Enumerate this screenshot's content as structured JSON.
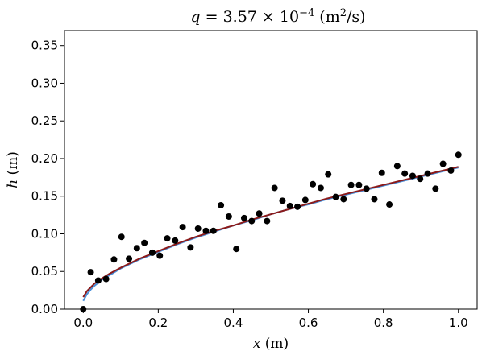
{
  "chart_data": {
    "type": "scatter",
    "title": {
      "italic": "q",
      "eq": " = 3.57 × 10",
      "exp": "−4",
      "unit_open": " (m",
      "unit_exp": "2",
      "unit_close": "/s)"
    },
    "xlabel": {
      "italic": "x",
      "unit": " (m)"
    },
    "ylabel": {
      "italic": "h",
      "unit": " (m)"
    },
    "xlim": [
      -0.05,
      1.05
    ],
    "ylim": [
      0.0,
      0.37
    ],
    "xticks": [
      0.0,
      0.2,
      0.4,
      0.6,
      0.8,
      1.0
    ],
    "xtick_labels": [
      "0.0",
      "0.2",
      "0.4",
      "0.6",
      "0.8",
      "1.0"
    ],
    "yticks": [
      0.0,
      0.05,
      0.1,
      0.15,
      0.2,
      0.25,
      0.3,
      0.35
    ],
    "ytick_labels": [
      "0.00",
      "0.05",
      "0.10",
      "0.15",
      "0.20",
      "0.25",
      "0.30",
      "0.35"
    ],
    "grid": false,
    "points": {
      "color": "#000000",
      "x": [
        0.0,
        0.02,
        0.04,
        0.061,
        0.082,
        0.102,
        0.122,
        0.143,
        0.163,
        0.184,
        0.204,
        0.224,
        0.245,
        0.265,
        0.286,
        0.306,
        0.327,
        0.347,
        0.367,
        0.388,
        0.408,
        0.429,
        0.449,
        0.469,
        0.49,
        0.51,
        0.531,
        0.551,
        0.571,
        0.592,
        0.612,
        0.633,
        0.653,
        0.673,
        0.694,
        0.714,
        0.735,
        0.755,
        0.776,
        0.796,
        0.816,
        0.837,
        0.857,
        0.878,
        0.898,
        0.918,
        0.939,
        0.959,
        0.98,
        1.0
      ],
      "y": [
        0.0,
        0.049,
        0.038,
        0.04,
        0.066,
        0.096,
        0.067,
        0.081,
        0.088,
        0.075,
        0.071,
        0.094,
        0.091,
        0.109,
        0.082,
        0.107,
        0.104,
        0.104,
        0.138,
        0.123,
        0.08,
        0.121,
        0.117,
        0.127,
        0.117,
        0.161,
        0.144,
        0.137,
        0.136,
        0.145,
        0.166,
        0.161,
        0.179,
        0.149,
        0.146,
        0.165,
        0.165,
        0.16,
        0.146,
        0.181,
        0.139,
        0.19,
        0.18,
        0.177,
        0.173,
        0.18,
        0.16,
        0.193,
        0.184,
        0.205
      ]
    },
    "series": [
      {
        "color": "#4a90d9",
        "x": [
          0.0,
          0.01,
          0.02,
          0.03,
          0.05,
          0.07,
          0.1,
          0.15,
          0.2,
          0.25,
          0.3,
          0.35,
          0.4,
          0.45,
          0.5,
          0.55,
          0.6,
          0.65,
          0.7,
          0.75,
          0.8,
          0.85,
          0.9,
          0.95,
          1.0
        ],
        "y": [
          0.011,
          0.02,
          0.026,
          0.031,
          0.039,
          0.045,
          0.054,
          0.066,
          0.076,
          0.086,
          0.095,
          0.103,
          0.111,
          0.118,
          0.126,
          0.133,
          0.139,
          0.146,
          0.152,
          0.158,
          0.164,
          0.17,
          0.176,
          0.182,
          0.188
        ]
      },
      {
        "color": "#8b1a1a",
        "x": [
          0.0,
          0.01,
          0.02,
          0.03,
          0.05,
          0.07,
          0.1,
          0.15,
          0.2,
          0.25,
          0.3,
          0.35,
          0.4,
          0.45,
          0.5,
          0.55,
          0.6,
          0.65,
          0.7,
          0.75,
          0.8,
          0.85,
          0.9,
          0.95,
          1.0
        ],
        "y": [
          0.016,
          0.024,
          0.029,
          0.034,
          0.041,
          0.047,
          0.055,
          0.067,
          0.077,
          0.087,
          0.096,
          0.104,
          0.111,
          0.119,
          0.126,
          0.133,
          0.14,
          0.147,
          0.153,
          0.159,
          0.165,
          0.171,
          0.177,
          0.183,
          0.189
        ]
      }
    ]
  }
}
